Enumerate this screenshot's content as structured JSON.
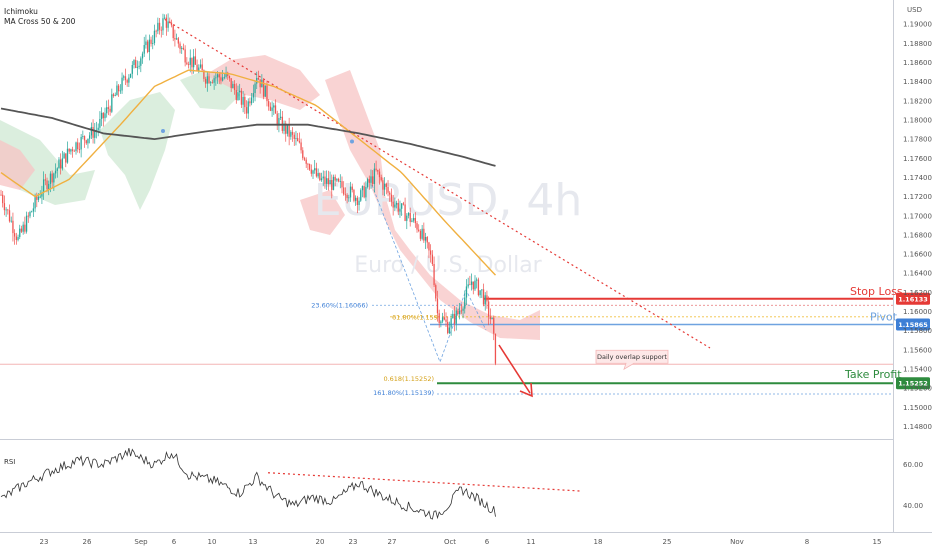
{
  "indicators": [
    "Ichimoku",
    "MA Cross 50 & 200"
  ],
  "watermark": {
    "symbol": "EURUSD, 4h",
    "description": "Euro / U.S. Dollar"
  },
  "currency": "USD",
  "colors": {
    "bull": "#26a69a",
    "bear": "#ef5350",
    "ma50": "#f0b040",
    "ma200": "#555555",
    "cloud_red": "#f7c4c4",
    "cloud_green": "#cfe8d3",
    "stop": "#e53935",
    "pivot": "#6fa3e0",
    "target": "#2e8b3e"
  },
  "chart_data": [
    {
      "type": "line",
      "series_kind": "candlestick",
      "y_ticks": [
        1.19,
        1.188,
        1.186,
        1.184,
        1.182,
        1.18,
        1.178,
        1.176,
        1.174,
        1.172,
        1.17,
        1.168,
        1.166,
        1.164,
        1.162,
        1.16,
        1.158,
        1.156,
        1.154,
        1.152,
        1.15,
        1.148
      ],
      "y_tick_labels": [
        "1.19000",
        "1.18800",
        "1.18600",
        "1.18400",
        "1.18200",
        "1.18000",
        "1.17800",
        "1.17600",
        "1.17400",
        "1.17200",
        "1.17000",
        "1.16800",
        "1.16600",
        "1.16400",
        "1.16200",
        "1.16000",
        "1.15800",
        "1.15600",
        "1.15400",
        "1.15200",
        "1.15000",
        "1.14800"
      ],
      "ylim": [
        1.1468,
        1.192
      ],
      "x_ticks": [
        "23",
        "26",
        "Sep",
        "6",
        "10",
        "13",
        "20",
        "23",
        "27",
        "Oct",
        "6",
        "11",
        "18",
        "25",
        "Nov",
        "8",
        "15"
      ],
      "price_anchors": [
        [
          0,
          1.1722
        ],
        [
          10,
          1.1675
        ],
        [
          24,
          1.1728
        ],
        [
          42,
          1.1772
        ],
        [
          56,
          1.179
        ],
        [
          70,
          1.1835
        ],
        [
          84,
          1.1872
        ],
        [
          96,
          1.1905
        ],
        [
          108,
          1.1868
        ],
        [
          120,
          1.1845
        ],
        [
          132,
          1.1845
        ],
        [
          144,
          1.1812
        ],
        [
          150,
          1.1848
        ],
        [
          162,
          1.18
        ],
        [
          174,
          1.1775
        ],
        [
          186,
          1.1738
        ],
        [
          200,
          1.173
        ],
        [
          210,
          1.1718
        ],
        [
          220,
          1.1745
        ],
        [
          230,
          1.1715
        ],
        [
          245,
          1.1688
        ],
        [
          253,
          1.1652
        ],
        [
          256,
          1.1598
        ],
        [
          262,
          1.1585
        ],
        [
          268,
          1.1598
        ],
        [
          276,
          1.1632
        ],
        [
          282,
          1.162
        ],
        [
          288,
          1.1588
        ],
        [
          290,
          1.1552
        ]
      ],
      "ma50_anchors": [
        [
          0,
          1.1745
        ],
        [
          20,
          1.172
        ],
        [
          40,
          1.1738
        ],
        [
          70,
          1.1795
        ],
        [
          90,
          1.1835
        ],
        [
          110,
          1.1852
        ],
        [
          135,
          1.1848
        ],
        [
          160,
          1.1835
        ],
        [
          185,
          1.1815
        ],
        [
          210,
          1.178
        ],
        [
          235,
          1.1745
        ],
        [
          260,
          1.1695
        ],
        [
          290,
          1.1638
        ]
      ],
      "ma200_anchors": [
        [
          0,
          1.1812
        ],
        [
          30,
          1.1802
        ],
        [
          60,
          1.1786
        ],
        [
          90,
          1.178
        ],
        [
          120,
          1.1788
        ],
        [
          150,
          1.1795
        ],
        [
          180,
          1.1795
        ],
        [
          210,
          1.1786
        ],
        [
          240,
          1.1775
        ],
        [
          270,
          1.1762
        ],
        [
          290,
          1.1752
        ]
      ],
      "levels": [
        {
          "name": "Stop Loss",
          "value": 1.16133,
          "label": "1.16133"
        },
        {
          "name": "Pivot",
          "value": 1.15865,
          "label": "1.15865"
        },
        {
          "name": "Take Profit",
          "value": 1.15252,
          "label": "1.15252"
        }
      ],
      "fib_labels": [
        {
          "text": "23.60%(1.16066)",
          "value": 1.16066
        },
        {
          "text": "61.80%(1.159",
          "value": 1.15945
        },
        {
          "text": "0.618(1.15252)",
          "value": 1.15252
        },
        {
          "text": "161.80%(1.15139)",
          "value": 1.15139
        }
      ],
      "annotation": "Daily overlap support",
      "support_value": 1.1545,
      "downtrend_line": [
        [
          96,
          1.1905
        ],
        [
          410,
          1.1562
        ]
      ]
    },
    {
      "type": "line",
      "name": "RSI",
      "y_ticks": [
        60,
        40
      ],
      "y_tick_labels": [
        "60.00",
        "40.00"
      ],
      "ylim": [
        28,
        72
      ],
      "values_anchors": [
        [
          0,
          43
        ],
        [
          15,
          51
        ],
        [
          30,
          57
        ],
        [
          45,
          62
        ],
        [
          60,
          60
        ],
        [
          75,
          66
        ],
        [
          90,
          60
        ],
        [
          100,
          66
        ],
        [
          110,
          55
        ],
        [
          125,
          52
        ],
        [
          140,
          46
        ],
        [
          150,
          54
        ],
        [
          162,
          44
        ],
        [
          172,
          40
        ],
        [
          182,
          44
        ],
        [
          195,
          42
        ],
        [
          210,
          51
        ],
        [
          225,
          44
        ],
        [
          240,
          39
        ],
        [
          255,
          35
        ],
        [
          262,
          40
        ],
        [
          270,
          48
        ],
        [
          280,
          43
        ],
        [
          290,
          37
        ]
      ],
      "trendline": [
        [
          150,
          56
        ],
        [
          330,
          47
        ]
      ]
    }
  ]
}
